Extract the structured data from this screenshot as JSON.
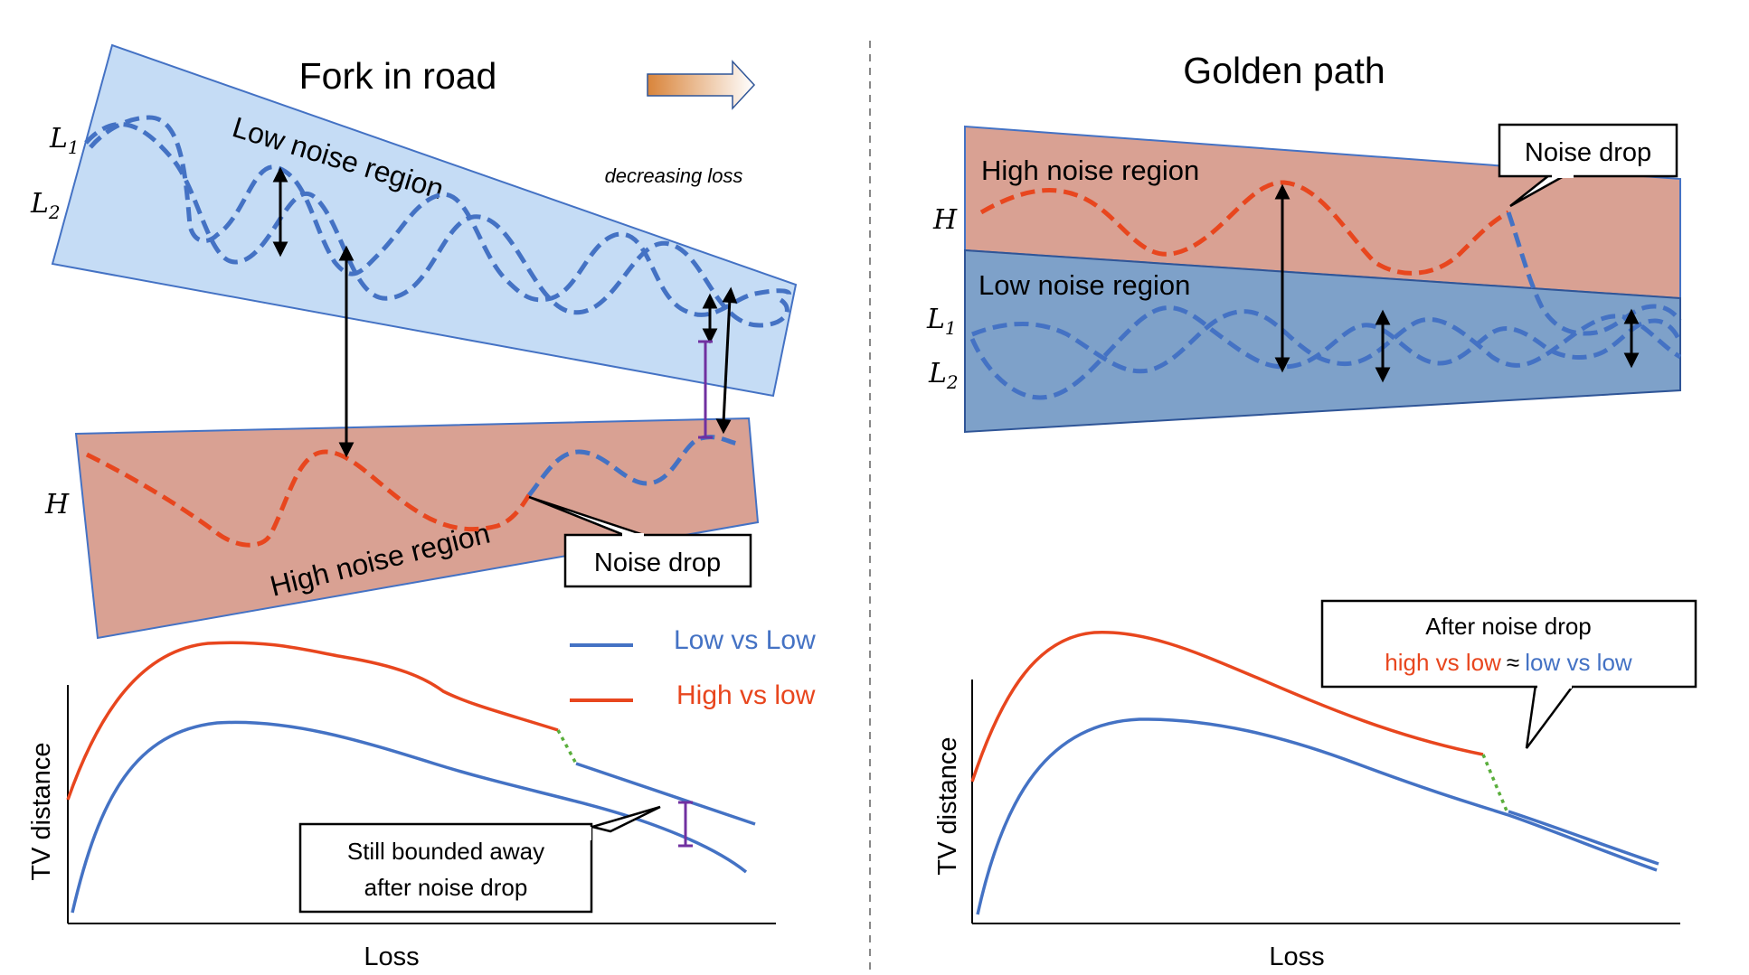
{
  "left_panel": {
    "title": "Fork in road",
    "direction_note": "decreasing loss",
    "low_region_label": "Low noise region",
    "high_region_label": "High noise region",
    "noise_drop_label": "Noise drop",
    "curve_labels": {
      "L1": "L",
      "L1_sub": "1",
      "L2": "L",
      "L2_sub": "2",
      "H": "H"
    },
    "legend": [
      {
        "label": "Low vs Low",
        "color": "#4472c4"
      },
      {
        "label": "High vs low",
        "color": "#e8461e"
      }
    ],
    "callout": {
      "line1": "Still bounded away",
      "line2": "after noise drop"
    },
    "chart_data": {
      "type": "line",
      "xlabel": "Loss",
      "ylabel": "TV distance",
      "series": [
        {
          "name": "Low vs Low",
          "color": "#4472c4"
        },
        {
          "name": "High vs low",
          "color": "#e8461e"
        }
      ]
    }
  },
  "right_panel": {
    "title": "Golden path",
    "high_region_label": "High noise region",
    "low_region_label": "Low noise region",
    "noise_drop_label": "Noise drop",
    "curve_labels": {
      "H": "H",
      "L1": "L",
      "L1_sub": "1",
      "L2": "L",
      "L2_sub": "2"
    },
    "callout": {
      "line1": "After noise drop",
      "high_part": "high vs low",
      "approx": "≈",
      "low_part": "low vs low"
    },
    "chart_data": {
      "type": "line",
      "xlabel": "Loss",
      "ylabel": "TV distance",
      "series": [
        {
          "name": "Low vs Low",
          "color": "#4472c4"
        },
        {
          "name": "High vs low",
          "color": "#e8461e"
        }
      ]
    }
  },
  "colors": {
    "low_region_fill": "#c5dcf5",
    "high_region_fill": "#d9a193",
    "right_low_region_fill": "#7ea1c9",
    "blue_curve": "#4472c4",
    "red_curve": "#e8461e",
    "transition": "#5aae3c",
    "bound_marker": "#7030a0"
  }
}
